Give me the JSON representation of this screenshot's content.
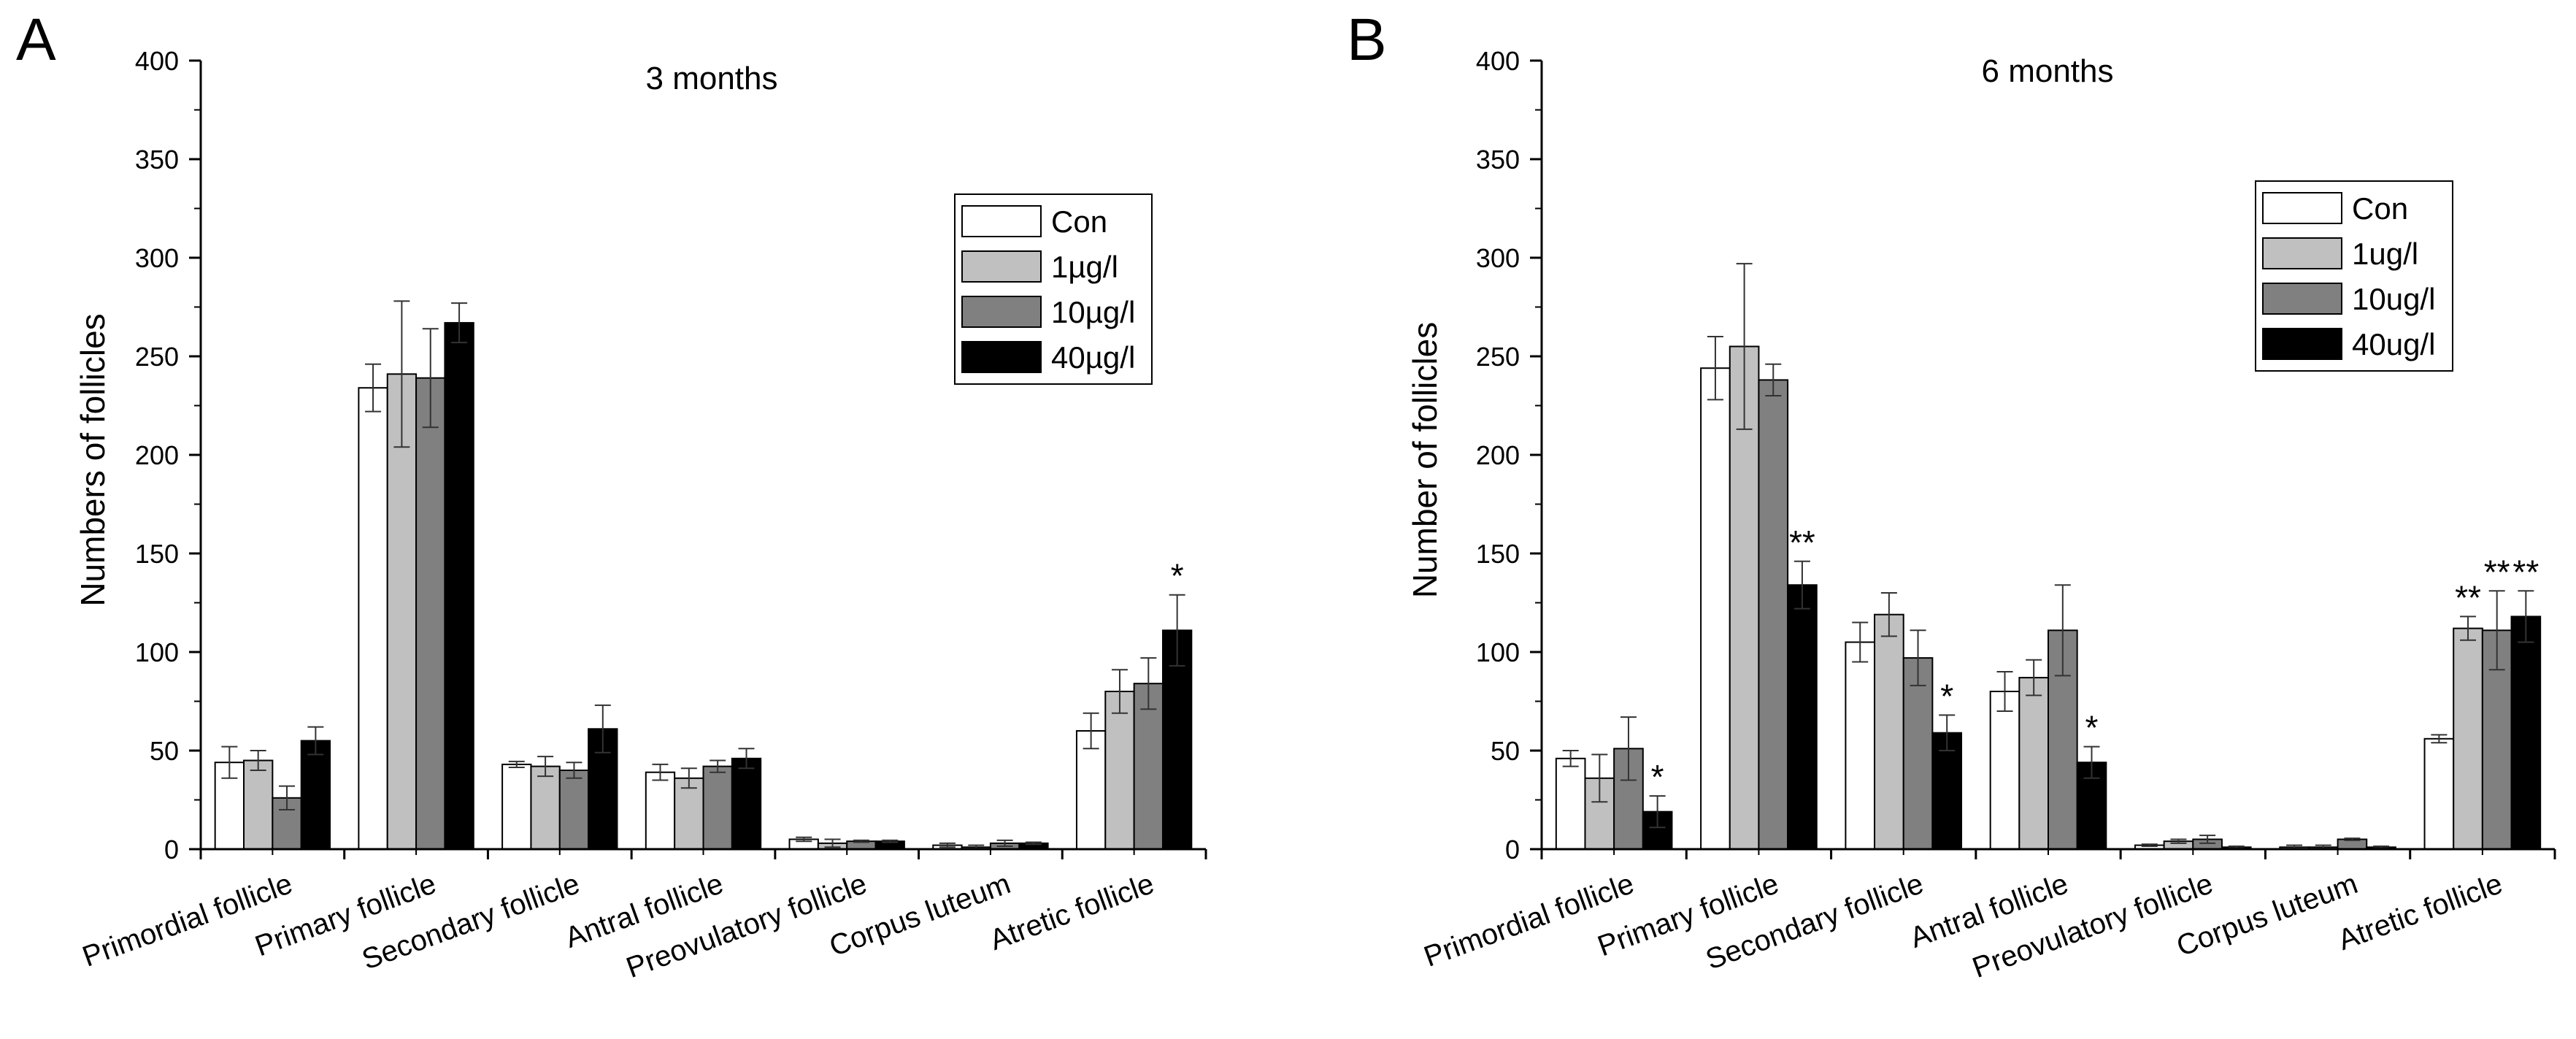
{
  "figure": {
    "panels": [
      {
        "letter": "A",
        "legend_position": "top-right"
      },
      {
        "letter": "B",
        "legend_position": "top-right"
      }
    ]
  },
  "chart_data": [
    {
      "type": "bar",
      "panel": "A",
      "title": "3 months",
      "xlabel": "",
      "ylabel": "Numbers of follicles",
      "ylim": [
        0,
        400
      ],
      "yticks": [
        0,
        50,
        100,
        150,
        200,
        250,
        300,
        350,
        400
      ],
      "grid": false,
      "categories": [
        "Primordial follicle",
        "Primary follicle",
        "Secondary follicle",
        "Antral follicle",
        "Preovulatory follicle",
        "Corpus luteum",
        "Atretic follicle"
      ],
      "series": [
        {
          "name": "Con",
          "color": "#ffffff",
          "values": [
            44,
            234,
            43,
            39,
            5,
            2,
            60
          ],
          "errors": [
            8,
            12,
            1.5,
            4,
            1,
            1,
            9
          ]
        },
        {
          "name": "1µg/l",
          "color": "#c0c0c0",
          "values": [
            45,
            241,
            42,
            36,
            3,
            1,
            80
          ],
          "errors": [
            5,
            37,
            5,
            5,
            2,
            1,
            11
          ]
        },
        {
          "name": "10µg/l",
          "color": "#808080",
          "values": [
            26,
            239,
            40,
            42,
            4,
            3,
            84
          ],
          "errors": [
            6,
            25,
            4,
            3,
            0.5,
            1.5,
            13
          ]
        },
        {
          "name": "40µg/l",
          "color": "#000000",
          "values": [
            55,
            267,
            61,
            46,
            4,
            3,
            111
          ],
          "errors": [
            7,
            10,
            12,
            5,
            0.5,
            0.5,
            18
          ]
        }
      ],
      "annotations": [
        {
          "text": "*",
          "category": "Atretic follicle",
          "series": "40µg/l"
        }
      ]
    },
    {
      "type": "bar",
      "panel": "B",
      "title": "6 months",
      "xlabel": "",
      "ylabel": "Number of follicles",
      "ylim": [
        0,
        400
      ],
      "yticks": [
        0,
        50,
        100,
        150,
        200,
        250,
        300,
        350,
        400
      ],
      "grid": false,
      "categories": [
        "Primordial follicle",
        "Primary follicle",
        "Secondary follicle",
        "Antral follicle",
        "Preovulatory follicle",
        "Corpus luteum",
        "Atretic follicle"
      ],
      "series": [
        {
          "name": "Con",
          "color": "#ffffff",
          "values": [
            46,
            244,
            105,
            80,
            2,
            1,
            56
          ],
          "errors": [
            4,
            16,
            10,
            10,
            0.5,
            1,
            2
          ]
        },
        {
          "name": "1ug/l",
          "color": "#c0c0c0",
          "values": [
            36,
            255,
            119,
            87,
            4,
            1,
            112
          ],
          "errors": [
            12,
            42,
            11,
            9,
            1,
            1,
            6
          ]
        },
        {
          "name": "10ug/l",
          "color": "#808080",
          "values": [
            51,
            238,
            97,
            111,
            5,
            5,
            111
          ],
          "errors": [
            16,
            8,
            14,
            23,
            2,
            0.5,
            20
          ]
        },
        {
          "name": "40ug/l",
          "color": "#000000",
          "values": [
            19,
            134,
            59,
            44,
            1,
            1,
            118
          ],
          "errors": [
            8,
            12,
            9,
            8,
            0.5,
            0.5,
            13
          ]
        }
      ],
      "annotations": [
        {
          "text": "*",
          "category": "Primordial follicle",
          "series": "40ug/l"
        },
        {
          "text": "**",
          "category": "Primary follicle",
          "series": "40ug/l"
        },
        {
          "text": "*",
          "category": "Secondary follicle",
          "series": "40ug/l"
        },
        {
          "text": "*",
          "category": "Antral follicle",
          "series": "40ug/l"
        },
        {
          "text": "**",
          "category": "Atretic follicle",
          "series": "1ug/l"
        },
        {
          "text": "**",
          "category": "Atretic follicle",
          "series": "10ug/l"
        },
        {
          "text": "**",
          "category": "Atretic follicle",
          "series": "40ug/l"
        }
      ]
    }
  ]
}
